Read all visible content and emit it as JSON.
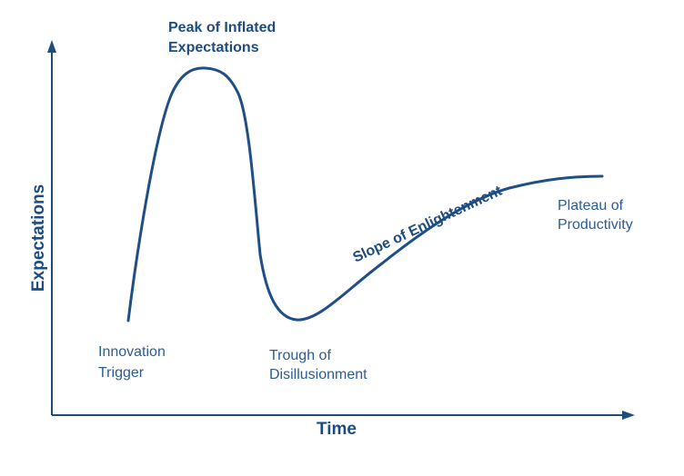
{
  "axes": {
    "y_label": "Expectations",
    "x_label": "Time"
  },
  "phases": {
    "innovation_trigger": [
      "Innovation",
      "Trigger"
    ],
    "peak": [
      "Peak of Inflated",
      "Expectations"
    ],
    "trough": [
      "Trough of",
      "Disillusionment"
    ],
    "slope": "Slope of Enlightenment",
    "plateau": [
      "Plateau of",
      "Productivity"
    ]
  },
  "colors": {
    "axis": "#1d4d80",
    "curve": "#1f4f86",
    "label": "#2b5e94"
  }
}
